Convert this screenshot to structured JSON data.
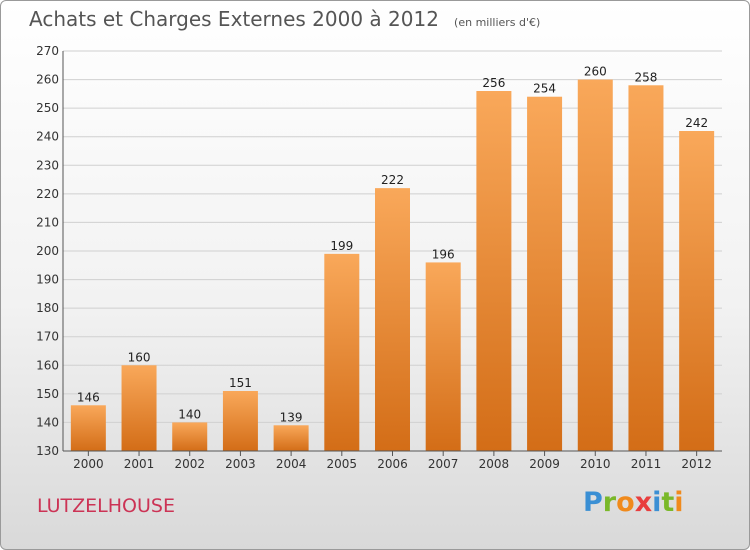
{
  "title": "Achats et Charges Externes 2000 à 2012",
  "unit": "(en milliers d'€)",
  "commune": "LUTZELHOUSE",
  "logo": {
    "text": "Proxiti",
    "letter_colors": [
      "#3a8fd4",
      "#7ab829",
      "#f08a1c",
      "#e83e3e",
      "#3a8fd4",
      "#7ab829",
      "#f08a1c"
    ]
  },
  "colors": {
    "bar_top": "#f9a85a",
    "bar_bottom": "#d36d17",
    "accent": "#cc3355"
  },
  "chart_data": {
    "type": "bar",
    "categories": [
      "2000",
      "2001",
      "2002",
      "2003",
      "2004",
      "2005",
      "2006",
      "2007",
      "2008",
      "2009",
      "2010",
      "2011",
      "2012"
    ],
    "values": [
      146,
      160,
      140,
      151,
      139,
      199,
      222,
      196,
      256,
      254,
      260,
      258,
      242
    ],
    "ylim": [
      130,
      270
    ],
    "yticks": [
      130,
      140,
      150,
      160,
      170,
      180,
      190,
      200,
      210,
      220,
      230,
      240,
      250,
      260,
      270
    ],
    "grid": true,
    "title": "Achats et Charges Externes 2000 à 2012"
  }
}
